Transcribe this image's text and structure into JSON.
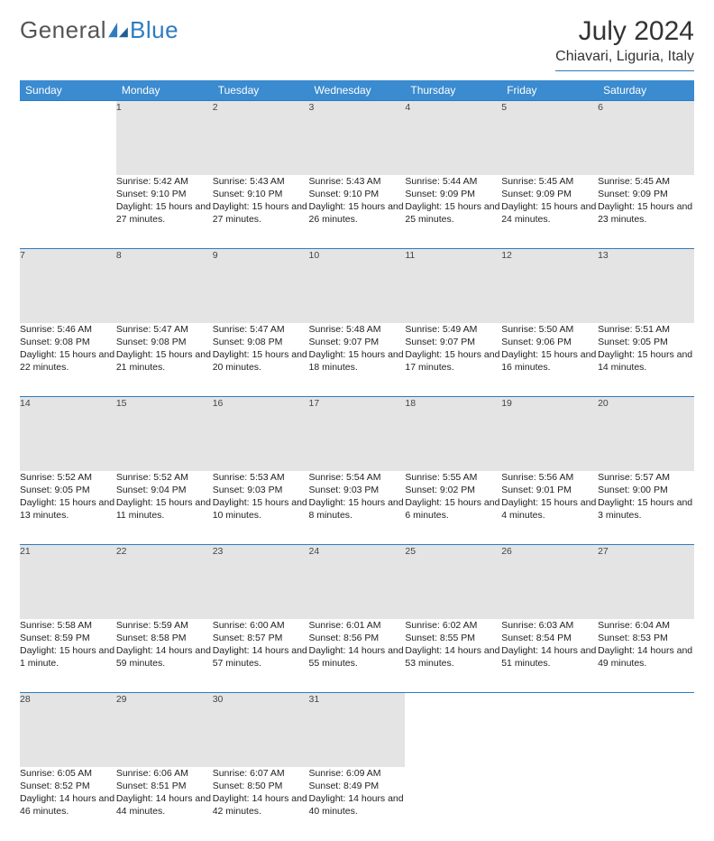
{
  "brand": {
    "name1": "General",
    "name2": "Blue"
  },
  "title": "July 2024",
  "location": "Chiavari, Liguria, Italy",
  "colors": {
    "header_bg": "#3a8bd0",
    "accent_line": "#2e7cc0",
    "daynum_bg": "#e4e4e4",
    "text": "#222222",
    "page_bg": "#ffffff"
  },
  "weekday_labels": [
    "Sunday",
    "Monday",
    "Tuesday",
    "Wednesday",
    "Thursday",
    "Friday",
    "Saturday"
  ],
  "first_weekday_index": 1,
  "days_in_month": 31,
  "field_labels": {
    "sunrise": "Sunrise:",
    "sunset": "Sunset:",
    "daylight": "Daylight:"
  },
  "days": {
    "1": {
      "sunrise": "5:42 AM",
      "sunset": "9:10 PM",
      "daylight": "15 hours and 27 minutes."
    },
    "2": {
      "sunrise": "5:43 AM",
      "sunset": "9:10 PM",
      "daylight": "15 hours and 27 minutes."
    },
    "3": {
      "sunrise": "5:43 AM",
      "sunset": "9:10 PM",
      "daylight": "15 hours and 26 minutes."
    },
    "4": {
      "sunrise": "5:44 AM",
      "sunset": "9:09 PM",
      "daylight": "15 hours and 25 minutes."
    },
    "5": {
      "sunrise": "5:45 AM",
      "sunset": "9:09 PM",
      "daylight": "15 hours and 24 minutes."
    },
    "6": {
      "sunrise": "5:45 AM",
      "sunset": "9:09 PM",
      "daylight": "15 hours and 23 minutes."
    },
    "7": {
      "sunrise": "5:46 AM",
      "sunset": "9:08 PM",
      "daylight": "15 hours and 22 minutes."
    },
    "8": {
      "sunrise": "5:47 AM",
      "sunset": "9:08 PM",
      "daylight": "15 hours and 21 minutes."
    },
    "9": {
      "sunrise": "5:47 AM",
      "sunset": "9:08 PM",
      "daylight": "15 hours and 20 minutes."
    },
    "10": {
      "sunrise": "5:48 AM",
      "sunset": "9:07 PM",
      "daylight": "15 hours and 18 minutes."
    },
    "11": {
      "sunrise": "5:49 AM",
      "sunset": "9:07 PM",
      "daylight": "15 hours and 17 minutes."
    },
    "12": {
      "sunrise": "5:50 AM",
      "sunset": "9:06 PM",
      "daylight": "15 hours and 16 minutes."
    },
    "13": {
      "sunrise": "5:51 AM",
      "sunset": "9:05 PM",
      "daylight": "15 hours and 14 minutes."
    },
    "14": {
      "sunrise": "5:52 AM",
      "sunset": "9:05 PM",
      "daylight": "15 hours and 13 minutes."
    },
    "15": {
      "sunrise": "5:52 AM",
      "sunset": "9:04 PM",
      "daylight": "15 hours and 11 minutes."
    },
    "16": {
      "sunrise": "5:53 AM",
      "sunset": "9:03 PM",
      "daylight": "15 hours and 10 minutes."
    },
    "17": {
      "sunrise": "5:54 AM",
      "sunset": "9:03 PM",
      "daylight": "15 hours and 8 minutes."
    },
    "18": {
      "sunrise": "5:55 AM",
      "sunset": "9:02 PM",
      "daylight": "15 hours and 6 minutes."
    },
    "19": {
      "sunrise": "5:56 AM",
      "sunset": "9:01 PM",
      "daylight": "15 hours and 4 minutes."
    },
    "20": {
      "sunrise": "5:57 AM",
      "sunset": "9:00 PM",
      "daylight": "15 hours and 3 minutes."
    },
    "21": {
      "sunrise": "5:58 AM",
      "sunset": "8:59 PM",
      "daylight": "15 hours and 1 minute."
    },
    "22": {
      "sunrise": "5:59 AM",
      "sunset": "8:58 PM",
      "daylight": "14 hours and 59 minutes."
    },
    "23": {
      "sunrise": "6:00 AM",
      "sunset": "8:57 PM",
      "daylight": "14 hours and 57 minutes."
    },
    "24": {
      "sunrise": "6:01 AM",
      "sunset": "8:56 PM",
      "daylight": "14 hours and 55 minutes."
    },
    "25": {
      "sunrise": "6:02 AM",
      "sunset": "8:55 PM",
      "daylight": "14 hours and 53 minutes."
    },
    "26": {
      "sunrise": "6:03 AM",
      "sunset": "8:54 PM",
      "daylight": "14 hours and 51 minutes."
    },
    "27": {
      "sunrise": "6:04 AM",
      "sunset": "8:53 PM",
      "daylight": "14 hours and 49 minutes."
    },
    "28": {
      "sunrise": "6:05 AM",
      "sunset": "8:52 PM",
      "daylight": "14 hours and 46 minutes."
    },
    "29": {
      "sunrise": "6:06 AM",
      "sunset": "8:51 PM",
      "daylight": "14 hours and 44 minutes."
    },
    "30": {
      "sunrise": "6:07 AM",
      "sunset": "8:50 PM",
      "daylight": "14 hours and 42 minutes."
    },
    "31": {
      "sunrise": "6:09 AM",
      "sunset": "8:49 PM",
      "daylight": "14 hours and 40 minutes."
    }
  }
}
